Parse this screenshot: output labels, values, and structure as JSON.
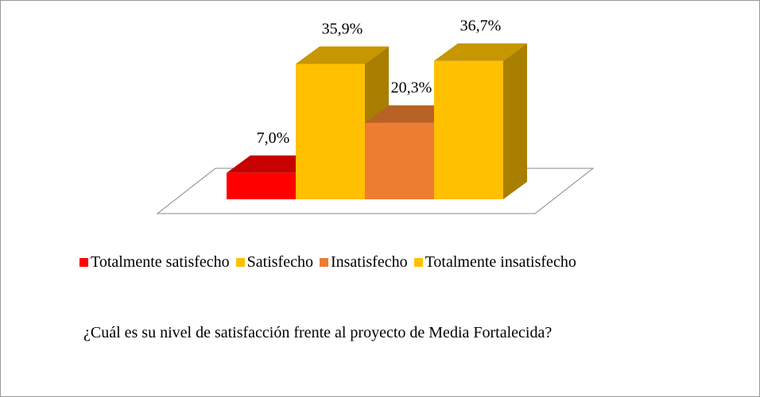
{
  "chart_data": {
    "type": "bar3d",
    "title": "¿Cuál es su nivel de satisfacción frente al proyecto de Media Fortalecida?",
    "categories": [
      "Totalmente satisfecho",
      "Satisfecho",
      "Insatisfecho",
      "Totalmente insatisfecho"
    ],
    "values": [
      7.0,
      35.9,
      20.3,
      36.7
    ],
    "value_labels": [
      "7,0%",
      "35,9%",
      "20,3%",
      "36,7%"
    ],
    "colors": [
      "#ff0000",
      "#ffc000",
      "#ed7d31",
      "#ffc000"
    ]
  }
}
